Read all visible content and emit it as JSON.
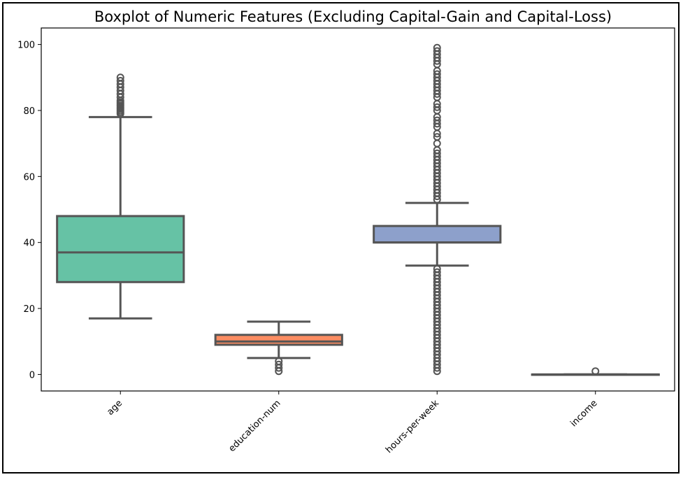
{
  "chart_data": {
    "type": "box",
    "title": "Boxplot of Numeric Features (Excluding Capital-Gain and Capital-Loss)",
    "xlabel": "",
    "ylabel": "",
    "ylim": [
      -5,
      105
    ],
    "yticks": [
      0,
      20,
      40,
      60,
      80,
      100
    ],
    "grid": false,
    "categories": [
      "age",
      "education-num",
      "hours-per-week",
      "income"
    ],
    "boxes": [
      {
        "category": "age",
        "color": "#66c2a5",
        "whisker_low": 17,
        "q1": 28,
        "median": 37,
        "q3": 48,
        "whisker_high": 78,
        "outliers": [
          79,
          79.5,
          80,
          80.5,
          81,
          81.5,
          82,
          82.5,
          83,
          84,
          85,
          86,
          87,
          88,
          89,
          90
        ]
      },
      {
        "category": "education-num",
        "color": "#fc8d62",
        "whisker_low": 5,
        "q1": 9,
        "median": 10,
        "q3": 12,
        "whisker_high": 16,
        "outliers": [
          1,
          2,
          3,
          4
        ]
      },
      {
        "category": "hours-per-week",
        "color": "#8da0cb",
        "whisker_low": 33,
        "q1": 40,
        "median": 40,
        "q3": 45,
        "whisker_high": 52,
        "outliers": [
          1,
          2,
          3,
          4,
          5,
          6,
          7,
          8,
          9,
          10,
          11,
          12,
          13,
          14,
          15,
          16,
          17,
          18,
          19,
          20,
          21,
          22,
          23,
          24,
          25,
          26,
          27,
          28,
          29,
          30,
          31,
          32,
          53,
          54,
          55,
          56,
          57,
          58,
          59,
          60,
          61,
          62,
          63,
          64,
          65,
          66,
          67,
          68,
          70,
          72,
          73,
          75,
          76,
          77,
          78,
          80,
          81,
          82,
          84,
          85,
          86,
          87,
          88,
          89,
          90,
          91,
          92,
          94,
          95,
          96,
          97,
          98,
          99
        ]
      },
      {
        "category": "income",
        "color": "#e78ac3",
        "whisker_low": 0,
        "q1": 0,
        "median": 0,
        "q3": 0,
        "whisker_high": 0,
        "outliers": [
          1
        ]
      }
    ]
  }
}
